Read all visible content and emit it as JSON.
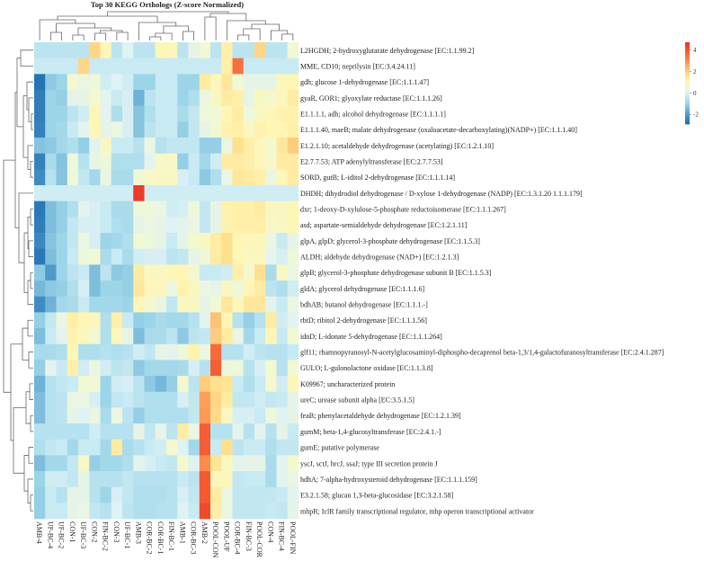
{
  "chart_data": {
    "type": "heatmap",
    "title": "Top 30 KEGG Orthologs (Z-score Normalized)",
    "xlabel": "",
    "ylabel": "",
    "columns": [
      "AMB-4",
      "UF-BC-4",
      "UF-BC-2",
      "CON-1",
      "UF-BC-3",
      "CON-2",
      "FIN-BC-2",
      "CON-3",
      "UF-BC-1",
      "AMB-3",
      "COR-BC-2",
      "COR-BC-1",
      "FIN-BC-1",
      "AMB-1",
      "COR-BC-3",
      "AMB-2",
      "POOL-CON",
      "POOL-UF",
      "COR-BC-4",
      "FIN-BC-3",
      "POOL-COR",
      "CON-4",
      "FIN-BC-4",
      "POOL-FIN"
    ],
    "rows": [
      "L2HGDH; 2-hydroxyglutarate dehydrogenase [EC:1.1.99.2]",
      "MME, CD10; neprilysin [EC:3.4.24.11]",
      "gdh; glucose 1-dehydrogenase [EC:1.1.1.47]",
      "gyaR, GOR1; glyoxylate reductase [EC:1.1.1.26]",
      "E1.1.1.1, adh; alcohol dehydrogenase [EC:1.1.1.1]",
      "E1.1.1.40, maeB; malate dehydrogenase (oxaloacetate-decarboxylating)(NADP+) [EC:1.1.1.40]",
      "E1.2.1.10; acetaldehyde dehydrogenase (acetylating) [EC:1.2.1.10]",
      "E2.7.7.53; ATP adenylyltransferase [EC:2.7.7.53]",
      "SORD, gutB; L-iditol 2-dehydrogenase [EC:1.1.1.14]",
      "DHDH; dihydrodiol dehydrogenase / D-xylose 1-dehydrogenase (NADP) [EC:1.3.1.20 1.1.1.179]",
      "dxr; 1-deoxy-D-xylulose-5-phosphate reductoisomerase [EC:1.1.1.267]",
      "asd; aspartate-semialdehyde dehydrogenase [EC:1.2.1.11]",
      "glpA, glpD; glycerol-3-phosphate dehydrogenase [EC:1.1.5.3]",
      "ALDH; aldehyde dehydrogenase (NAD+) [EC:1.2.1.3]",
      "glpB; glycerol-3-phosphate dehydrogenase subunit B [EC:1.1.5.3]",
      "gldA; glycerol dehydrogenase [EC:1.1.1.6]",
      "bdhAB; butanol dehydrogenase [EC:1.1.1.-]",
      "rbtD; ribitol 2-dehydrogenase [EC:1.1.1.56]",
      "idnD; L-idonate 5-dehydrogenase [EC:1.1.1.264]",
      "glf11; rhamnopyranosyl-N-acetylglucosaminyl-diphospho-decaprenol beta-1,3/1,4-galactofuranosyltransferase [EC:2.4.1.287]",
      "GULO; L-gulonolactone oxidase [EC:1.1.3.8]",
      "K09967; uncharacterized protein",
      "ureC; urease subunit alpha [EC:3.5.1.5]",
      "feaB; phenylacetaldehyde dehydrogenase [EC:1.2.1.39]",
      "gumM; beta-1,4-glucosyltransferase [EC:2.4.1.-]",
      "gumE; putative polymerase",
      "yscJ, sctJ, hrcJ, ssaJ; type III secretion protein J",
      "hdhA; 7-alpha-hydroxysteroid dehydrogenase [EC:1.1.1.159]",
      "E3.2.1.58; glucan 1,3-beta-glucosidase [EC:3.2.1.58]",
      "mhpR; IclR family transcriptional regulator, mhp operon transcriptional activator"
    ],
    "values": [
      [
        -0.5,
        -0.5,
        -0.5,
        -0.5,
        -0.5,
        1.8,
        1.0,
        -0.5,
        0.0,
        -0.5,
        -0.5,
        1.0,
        0.9,
        -0.5,
        0.2,
        0.5,
        -0.5,
        1.2,
        -0.5,
        -0.5,
        1.8,
        -0.5,
        -0.5,
        0.5
      ],
      [
        -0.3,
        -0.3,
        -0.3,
        -0.3,
        1.8,
        -0.3,
        -0.3,
        -0.3,
        -0.3,
        -0.3,
        -0.3,
        -0.3,
        -0.3,
        -0.3,
        -0.3,
        -0.3,
        -0.3,
        1.2,
        3.5,
        -0.3,
        -0.3,
        -0.3,
        -0.3,
        -0.3
      ],
      [
        -2.8,
        -1.2,
        -1.0,
        0.6,
        0.3,
        0.4,
        -0.2,
        0.0,
        -0.2,
        -1.0,
        -1.0,
        -0.3,
        -0.3,
        -1.0,
        -1.0,
        1.3,
        0.9,
        1.4,
        0.5,
        0.2,
        0.2,
        0.2,
        0.9,
        1.0
      ],
      [
        -2.6,
        -1.0,
        -1.1,
        0.2,
        0.2,
        0.6,
        0.1,
        -0.3,
        -0.1,
        -1.6,
        -0.5,
        -0.3,
        -0.3,
        -1.0,
        -0.7,
        0.3,
        0.8,
        1.3,
        1.2,
        0.2,
        0.8,
        0.6,
        0.9,
        1.3
      ],
      [
        -2.6,
        -1.0,
        -1.0,
        -0.5,
        -0.2,
        1.0,
        0.1,
        -0.7,
        -0.1,
        -1.3,
        -0.7,
        -0.3,
        -0.3,
        -0.8,
        -0.4,
        0.4,
        0.5,
        1.0,
        1.3,
        0.4,
        0.8,
        0.9,
        1.1,
        1.1
      ],
      [
        -2.5,
        -1.0,
        -0.9,
        -0.3,
        0.1,
        1.0,
        0.2,
        0.3,
        -0.1,
        -1.3,
        -0.5,
        -0.3,
        -0.3,
        -1.1,
        -0.4,
        0.2,
        0.5,
        1.1,
        1.2,
        0.8,
        1.1,
        1.0,
        1.0,
        1.2
      ],
      [
        -1.3,
        -1.2,
        -0.9,
        -0.7,
        -1.1,
        0.1,
        0.8,
        -0.3,
        -0.3,
        -0.6,
        0.3,
        -0.6,
        -0.4,
        -0.4,
        -0.4,
        -1.1,
        -1.1,
        0.3,
        1.6,
        1.2,
        0.9,
        0.6,
        1.4,
        2.0
      ],
      [
        -2.5,
        -0.8,
        -1.3,
        0.4,
        -0.6,
        0.2,
        0.4,
        -0.7,
        -0.7,
        -0.7,
        0.1,
        0.7,
        0.7,
        -1.1,
        -0.3,
        -0.9,
        -0.2,
        1.3,
        1.3,
        1.2,
        0.9,
        0.7,
        1.3,
        1.3
      ],
      [
        -2.3,
        -0.6,
        -1.3,
        0.4,
        -0.4,
        -0.9,
        0.3,
        -0.8,
        -0.8,
        0.5,
        0.7,
        0.8,
        0.8,
        -0.1,
        -0.3,
        -1.2,
        -0.7,
        0.3,
        1.4,
        1.3,
        1.2,
        0.3,
        0.9,
        1.3
      ],
      [
        -0.2,
        -0.2,
        -0.2,
        -0.2,
        -0.2,
        -0.2,
        -0.2,
        -0.2,
        -0.2,
        4.5,
        -0.2,
        -0.2,
        -0.2,
        -0.2,
        -0.2,
        -0.2,
        -0.2,
        -0.2,
        -0.2,
        -0.2,
        -0.2,
        -0.2,
        -0.2,
        -0.2
      ],
      [
        -2.7,
        -1.4,
        -1.1,
        -0.7,
        0.1,
        -0.1,
        -0.3,
        -0.8,
        -0.8,
        0.4,
        0.4,
        0.3,
        -0.2,
        -0.1,
        0.4,
        -0.4,
        0.2,
        1.1,
        1.2,
        1.2,
        1.3,
        0.8,
        0.8,
        1.0
      ],
      [
        -2.6,
        -1.4,
        -1.1,
        -0.4,
        -0.1,
        -0.1,
        -0.3,
        -0.7,
        -0.8,
        0.2,
        0.3,
        0.2,
        0.0,
        0.1,
        0.3,
        -0.4,
        0.2,
        1.1,
        1.2,
        1.2,
        1.2,
        0.7,
        0.8,
        1.0
      ],
      [
        -2.4,
        -1.3,
        -1.0,
        -0.4,
        0.3,
        -0.1,
        -1.0,
        -0.9,
        -0.7,
        0.5,
        0.4,
        0.2,
        -0.3,
        0.2,
        0.6,
        0.8,
        1.3,
        1.6,
        1.0,
        0.9,
        0.9,
        0.3,
        -0.3,
        0.2
      ],
      [
        -2.7,
        -1.4,
        -1.0,
        -0.3,
        0.4,
        0.5,
        -0.8,
        -0.3,
        -0.8,
        -0.2,
        -0.1,
        -0.1,
        -0.5,
        -0.4,
        0.2,
        0.4,
        1.3,
        1.6,
        1.0,
        0.8,
        0.9,
        0.1,
        -0.1,
        0.4
      ],
      [
        -1.2,
        -2.0,
        -1.0,
        -0.5,
        -0.3,
        -1.4,
        -0.5,
        -1.2,
        -1.1,
        1.3,
        0.8,
        0.8,
        1.0,
        1.0,
        0.6,
        -0.3,
        -0.3,
        -0.2,
        1.2,
        0.6,
        1.6,
        -0.8,
        0.8,
        0.3
      ],
      [
        -1.5,
        -1.2,
        -1.1,
        -0.7,
        -0.1,
        -1.4,
        -1.0,
        -1.0,
        -1.1,
        1.4,
        0.9,
        0.9,
        0.3,
        1.1,
        0.8,
        0.3,
        0.2,
        0.8,
        0.4,
        1.0,
        1.3,
        -0.5,
        -0.7,
        -0.2
      ],
      [
        -2.3,
        -1.6,
        -0.9,
        -0.8,
        -0.3,
        -0.9,
        -0.9,
        -0.9,
        -1.0,
        1.0,
        0.6,
        0.3,
        -0.4,
        0.8,
        0.8,
        0.2,
        0.5,
        1.4,
        0.9,
        1.4,
        1.4,
        0.1,
        -0.3,
        0.3
      ],
      [
        -1.1,
        -0.4,
        0.3,
        1.2,
        1.0,
        0.9,
        -0.7,
        1.2,
        -0.3,
        -1.1,
        -1.0,
        -0.8,
        -0.9,
        -0.9,
        -0.6,
        0.1,
        2.2,
        1.0,
        -0.6,
        -1.1,
        -0.6,
        1.3,
        -0.2,
        0.1
      ],
      [
        -1.4,
        -0.3,
        0.1,
        1.1,
        0.9,
        0.5,
        -0.7,
        0.9,
        0.2,
        -1.4,
        -0.8,
        -0.8,
        -0.5,
        -1.2,
        -0.5,
        -0.4,
        2.0,
        1.3,
        0.3,
        -0.9,
        -0.3,
        1.0,
        -0.3,
        0.5
      ],
      [
        -0.8,
        -0.8,
        -0.7,
        1.0,
        -0.7,
        -0.7,
        -0.6,
        -0.7,
        -0.6,
        -0.2,
        -0.4,
        0.2,
        0.1,
        0.4,
        1.1,
        0.3,
        3.6,
        -0.6,
        -0.6,
        -0.2,
        -0.5,
        -0.6,
        -0.6,
        -0.3
      ],
      [
        -1.1,
        0.1,
        -0.3,
        1.2,
        -0.2,
        0.3,
        -0.2,
        -0.5,
        -0.4,
        -1.2,
        -0.9,
        -0.9,
        -0.9,
        -0.8,
        -0.1,
        -0.6,
        3.8,
        0.4,
        0.4,
        -0.6,
        -0.1,
        0.6,
        -0.6,
        0.5
      ],
      [
        -1.6,
        -0.6,
        -0.4,
        -0.3,
        0.5,
        0.5,
        -1.0,
        -0.2,
        -0.1,
        -0.5,
        -1.2,
        -1.5,
        -1.1,
        0.6,
        -0.5,
        2.0,
        1.6,
        1.5,
        -0.3,
        -0.7,
        -0.3,
        0.6,
        -0.2,
        0.9
      ],
      [
        -1.4,
        -0.6,
        -0.5,
        0.3,
        0.3,
        -0.1,
        -1.0,
        -0.4,
        -0.3,
        -0.5,
        -0.7,
        -0.7,
        -0.7,
        -0.1,
        -0.4,
        2.7,
        1.8,
        1.3,
        -0.4,
        -0.4,
        -0.2,
        -0.4,
        -0.3,
        0.2
      ],
      [
        -1.4,
        -0.6,
        -0.5,
        0.2,
        0.0,
        0.3,
        -0.8,
        0.3,
        -0.5,
        -1.1,
        -0.7,
        -0.7,
        -0.7,
        -0.7,
        -0.4,
        2.8,
        1.7,
        0.8,
        -0.1,
        -0.1,
        -0.3,
        0.4,
        0.0,
        0.2
      ],
      [
        -0.6,
        -0.6,
        -0.6,
        -0.6,
        -0.6,
        -0.2,
        -0.6,
        -0.6,
        -0.6,
        0.2,
        -0.4,
        0.2,
        -0.5,
        1.3,
        0.3,
        3.8,
        -0.6,
        -0.6,
        0.1,
        -0.6,
        0.1,
        -0.6,
        0.2,
        -0.3
      ],
      [
        -0.7,
        -0.4,
        -0.3,
        -0.9,
        -0.3,
        -0.3,
        -0.9,
        1.3,
        -0.8,
        -0.6,
        -0.3,
        -0.2,
        0.6,
        0.0,
        -0.9,
        3.8,
        -0.3,
        1.6,
        -0.5,
        -0.3,
        -0.3,
        -0.7,
        -0.4,
        -0.4
      ],
      [
        -1.4,
        -0.9,
        -0.9,
        -0.4,
        0.7,
        -1.1,
        -0.9,
        -0.9,
        -0.7,
        0.1,
        -0.1,
        -0.3,
        -0.4,
        0.6,
        0.0,
        3.0,
        1.5,
        0.8,
        0.1,
        0.2,
        0.2,
        -0.8,
        0.1,
        0.6
      ],
      [
        -1.0,
        -0.2,
        -0.2,
        -0.4,
        0.2,
        -0.6,
        -0.6,
        -0.6,
        -0.4,
        -0.6,
        -0.6,
        -0.6,
        -0.6,
        -0.3,
        -0.5,
        3.9,
        0.9,
        0.9,
        -0.4,
        -0.3,
        -0.3,
        -0.8,
        0.1,
        0.3
      ],
      [
        -1.1,
        -0.3,
        -0.6,
        0.2,
        0.2,
        -0.6,
        -1.0,
        -0.1,
        -0.4,
        -0.7,
        -0.7,
        -0.7,
        -0.6,
        -0.1,
        -0.4,
        3.9,
        1.3,
        0.3,
        -0.4,
        -0.4,
        -0.4,
        -0.4,
        -0.3,
        0.1
      ],
      [
        -1.1,
        -0.3,
        -0.3,
        0.2,
        0.3,
        -0.4,
        -0.6,
        0.0,
        -0.5,
        -0.7,
        -0.7,
        -0.6,
        -0.6,
        0.0,
        -0.3,
        4.2,
        1.2,
        0.3,
        -0.4,
        -0.4,
        -0.4,
        -0.3,
        -0.4,
        0.2
      ]
    ],
    "colorbar": {
      "range": [
        -2.9,
        4.7
      ],
      "ticks": [
        4,
        2,
        0,
        -2
      ],
      "tick_labels": [
        "4",
        "2",
        "0",
        "-2"
      ]
    },
    "colormap": [
      {
        "v": -2.9,
        "c": "#1f6fb0"
      },
      {
        "v": -2.0,
        "c": "#4f9acb"
      },
      {
        "v": -1.0,
        "c": "#9dd5e8"
      },
      {
        "v": -0.3,
        "c": "#c8eaf3"
      },
      {
        "v": 0.0,
        "c": "#dff2f4"
      },
      {
        "v": 0.5,
        "c": "#f1f8d4"
      },
      {
        "v": 1.0,
        "c": "#fff6b5"
      },
      {
        "v": 1.6,
        "c": "#fee08f"
      },
      {
        "v": 2.2,
        "c": "#fdc273"
      },
      {
        "v": 3.0,
        "c": "#fb8c4e"
      },
      {
        "v": 4.0,
        "c": "#f4532f"
      },
      {
        "v": 4.7,
        "c": "#e8312a"
      }
    ],
    "grid": false,
    "dendrograms": [
      "rows",
      "columns"
    ]
  }
}
